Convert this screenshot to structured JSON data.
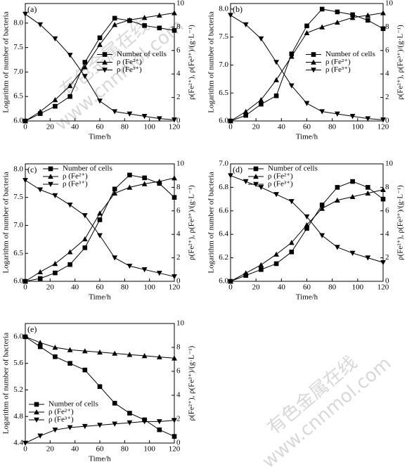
{
  "watermark": [
    "有色金属在线",
    "www.cnnmol.com"
  ],
  "chart_data": [
    {
      "type": "line",
      "panel_label": "(a)",
      "xlabel": "Time/h",
      "ylabel": "Logarithm of number of bacteria",
      "y2label": "ρ(Fe²⁺), ρ(Fe³⁺)/(g·L⁻¹)",
      "x": [
        0,
        12,
        24,
        36,
        48,
        60,
        72,
        84,
        96,
        108,
        120
      ],
      "series": [
        {
          "name": "Number of cells",
          "color": "#000000",
          "marker": "square",
          "values": [
            6.0,
            6.15,
            6.3,
            6.5,
            7.2,
            7.7,
            8.1,
            8.05,
            7.95,
            7.9,
            7.85
          ]
        },
        {
          "name": "ρ (Fe²⁺)",
          "color": "#000000",
          "marker": "triangle-up",
          "axis": "y2",
          "values": [
            0,
            0.8,
            1.8,
            3.0,
            4.6,
            6.5,
            8.2,
            8.6,
            8.8,
            9.0,
            9.2
          ]
        },
        {
          "name": "ρ (Fe³⁺)",
          "color": "#000000",
          "marker": "triangle-down",
          "axis": "y2",
          "values": [
            9.1,
            8.2,
            7.0,
            5.6,
            3.8,
            1.7,
            0.8,
            0.6,
            0.4,
            0.2,
            0.1
          ]
        }
      ],
      "xlim": [
        0,
        120
      ],
      "xticks": [
        0,
        20,
        40,
        60,
        80,
        100,
        120
      ],
      "ylim": [
        6,
        8.4
      ],
      "yticks": [
        {
          "value": 6,
          "label": "6.0"
        },
        {
          "value": 6.5,
          "label": "6.5"
        },
        {
          "value": 7,
          "label": "7.0"
        },
        {
          "value": 7.5,
          "label": "7.5"
        },
        {
          "value": 8,
          "label": "8.0"
        }
      ],
      "y2lim": [
        0,
        10
      ],
      "y2ticks": [
        0,
        2,
        4,
        6,
        8,
        10
      ],
      "legend": "center right"
    },
    {
      "type": "line",
      "panel_label": "(b)",
      "xlabel": "Time/h",
      "ylabel": "Logarithm of number of bacteria",
      "y2label": "ρ(Fe²⁺), ρ(Fe³⁺)/(g·L⁻¹)",
      "x": [
        0,
        12,
        24,
        36,
        48,
        60,
        72,
        84,
        96,
        108,
        120
      ],
      "series": [
        {
          "name": "Number of cells",
          "color": "#000000",
          "marker": "square",
          "values": [
            6.0,
            6.1,
            6.3,
            6.45,
            7.2,
            7.7,
            8.0,
            7.95,
            7.9,
            7.8,
            7.65
          ]
        },
        {
          "name": "ρ (Fe²⁺)",
          "color": "#000000",
          "marker": "triangle-up",
          "axis": "y2",
          "values": [
            0,
            0.8,
            1.8,
            3.5,
            5.5,
            7.5,
            8.0,
            8.4,
            8.8,
            9.0,
            9.2
          ]
        },
        {
          "name": "ρ (Fe³⁺)",
          "color": "#000000",
          "marker": "triangle-down",
          "axis": "y2",
          "values": [
            9.0,
            8.2,
            7.0,
            5.0,
            3.0,
            1.5,
            0.8,
            0.6,
            0.4,
            0.2,
            0.1
          ]
        }
      ],
      "xlim": [
        0,
        120
      ],
      "xticks": [
        0,
        20,
        40,
        60,
        80,
        100,
        120
      ],
      "ylim": [
        6,
        8.1
      ],
      "yticks": [
        {
          "value": 6,
          "label": "6.0"
        },
        {
          "value": 6.5,
          "label": "6.5"
        },
        {
          "value": 7,
          "label": "7.0"
        },
        {
          "value": 7.5,
          "label": "7.5"
        },
        {
          "value": 8,
          "label": "8.0"
        }
      ],
      "y2lim": [
        0,
        10
      ],
      "y2ticks": [
        0,
        2,
        4,
        6,
        8,
        10
      ],
      "legend": "center right"
    },
    {
      "type": "line",
      "panel_label": "(c)",
      "xlabel": "Time/h",
      "ylabel": "Logarithm of number of bacteria",
      "y2label": "ρ(Fe²⁺), ρ(Fe³⁺)/(g·L⁻¹)",
      "x": [
        0,
        12,
        24,
        36,
        48,
        60,
        72,
        84,
        96,
        108,
        120
      ],
      "series": [
        {
          "name": "Number of cells",
          "color": "#000000",
          "marker": "square",
          "values": [
            6.0,
            6.05,
            6.15,
            6.3,
            6.6,
            7.1,
            7.65,
            7.9,
            7.85,
            7.75,
            7.5
          ]
        },
        {
          "name": "ρ (Fe²⁺)",
          "color": "#000000",
          "marker": "triangle-up",
          "axis": "y2",
          "values": [
            0,
            0.8,
            1.5,
            2.5,
            3.6,
            5.8,
            7.5,
            8.0,
            8.3,
            8.5,
            8.8
          ]
        },
        {
          "name": "ρ (Fe³⁺)",
          "color": "#000000",
          "marker": "triangle-down",
          "axis": "y2",
          "values": [
            8.6,
            7.8,
            7.3,
            6.5,
            5.6,
            3.9,
            2.0,
            1.3,
            1.0,
            0.7,
            0.4
          ]
        }
      ],
      "xlim": [
        0,
        120
      ],
      "xticks": [
        0,
        20,
        40,
        60,
        80,
        100,
        120
      ],
      "ylim": [
        6,
        8.1
      ],
      "yticks": [
        {
          "value": 6,
          "label": "6.0"
        },
        {
          "value": 6.5,
          "label": "6.5"
        },
        {
          "value": 7,
          "label": "7.0"
        },
        {
          "value": 7.5,
          "label": "7.5"
        },
        {
          "value": 8,
          "label": "8.0"
        }
      ],
      "y2lim": [
        0,
        10
      ],
      "y2ticks": [
        0,
        2,
        4,
        6,
        8,
        10
      ],
      "legend": "upper left"
    },
    {
      "type": "line",
      "panel_label": "(d)",
      "xlabel": "Time/h",
      "ylabel": "Logarithm of number of bacteria",
      "y2label": "ρ(Fe²⁺), ρ(Fe³⁺)/(g·L⁻¹)",
      "x": [
        0,
        12,
        24,
        36,
        48,
        60,
        72,
        84,
        96,
        108,
        120
      ],
      "series": [
        {
          "name": "Number of cells",
          "color": "#000000",
          "marker": "square",
          "values": [
            6.0,
            6.05,
            6.1,
            6.15,
            6.25,
            6.45,
            6.65,
            6.8,
            6.85,
            6.8,
            6.7
          ]
        },
        {
          "name": "ρ (Fe²⁺)",
          "color": "#000000",
          "marker": "triangle-up",
          "axis": "y2",
          "values": [
            0,
            0.7,
            1.4,
            2.3,
            3.3,
            4.8,
            6.2,
            6.9,
            7.2,
            7.5,
            7.8
          ]
        },
        {
          "name": "ρ (Fe³⁺)",
          "color": "#000000",
          "marker": "triangle-down",
          "axis": "y2",
          "values": [
            9.0,
            8.5,
            8.0,
            7.4,
            6.8,
            5.5,
            3.9,
            2.9,
            2.4,
            2.0,
            1.6
          ]
        }
      ],
      "xlim": [
        0,
        120
      ],
      "xticks": [
        0,
        20,
        40,
        60,
        80,
        100,
        120
      ],
      "ylim": [
        6,
        7
      ],
      "yticks": [
        {
          "value": 6,
          "label": "6.0"
        },
        6.2,
        6.4,
        6.6,
        6.8,
        {
          "value": 7,
          "label": "7.0"
        }
      ],
      "y2lim": [
        0,
        10
      ],
      "y2ticks": [
        0,
        2,
        4,
        6,
        8,
        10
      ],
      "legend": "upper left"
    },
    {
      "type": "line",
      "panel_label": "(e)",
      "xlabel": "Time/h",
      "ylabel": "Logarithm of number of bacteria",
      "y2label": "ρ(Fe²⁺), ρ(Fe³⁺)/(g·L⁻¹)",
      "x": [
        0,
        12,
        24,
        36,
        48,
        60,
        72,
        84,
        96,
        108,
        120
      ],
      "series": [
        {
          "name": "Number of cells",
          "color": "#000000",
          "marker": "square",
          "values": [
            6.0,
            5.85,
            5.7,
            5.6,
            5.5,
            5.25,
            5.0,
            4.85,
            4.75,
            4.6,
            4.5
          ]
        },
        {
          "name": "ρ (Fe²⁺)",
          "color": "#000000",
          "marker": "triangle-up",
          "axis": "y2",
          "values": [
            8.9,
            8.4,
            8.0,
            7.8,
            7.7,
            7.6,
            7.5,
            7.4,
            7.3,
            7.2,
            7.1
          ]
        },
        {
          "name": "ρ (Fe³⁺)",
          "color": "#000000",
          "marker": "triangle-down",
          "axis": "y2",
          "values": [
            0,
            0.6,
            1.1,
            1.3,
            1.4,
            1.5,
            1.6,
            1.7,
            1.8,
            1.8,
            1.9
          ]
        }
      ],
      "xlim": [
        0,
        120
      ],
      "xticks": [
        0,
        20,
        40,
        60,
        80,
        100,
        120
      ],
      "ylim": [
        4.4,
        6.2
      ],
      "yticks": [
        4.4,
        4.8,
        5.2,
        5.6,
        {
          "value": 6,
          "label": "6.0"
        }
      ],
      "y2lim": [
        0,
        10
      ],
      "y2ticks": [
        0,
        2,
        4,
        6,
        8,
        10
      ],
      "legend": "lower left"
    }
  ]
}
